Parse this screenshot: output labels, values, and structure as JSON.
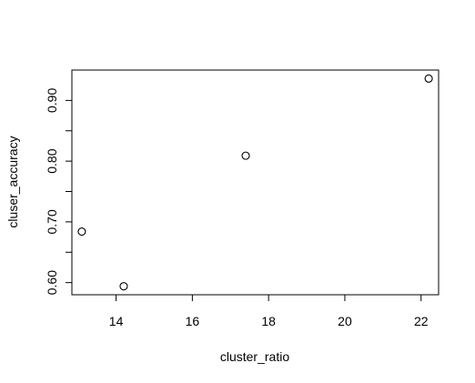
{
  "chart_data": {
    "type": "scatter",
    "title": "",
    "xlabel": "cluster_ratio",
    "ylabel": "cluser_accuracy",
    "x": [
      13.1,
      14.2,
      17.4,
      22.2
    ],
    "y": [
      0.684,
      0.594,
      0.809,
      0.936
    ],
    "xlim": [
      12.84,
      22.46
    ],
    "ylim": [
      0.58,
      0.95
    ],
    "xticks": [
      14,
      16,
      18,
      20,
      22
    ],
    "xtick_labels": [
      "14",
      "16",
      "18",
      "20",
      "22"
    ],
    "yticks": [
      0.6,
      0.65,
      0.7,
      0.75,
      0.8,
      0.85,
      0.9
    ],
    "ytick_labels": [
      "0.60",
      "",
      "0.70",
      "",
      "0.80",
      "",
      "0.90"
    ],
    "grid": false,
    "marker": "open-circle"
  }
}
